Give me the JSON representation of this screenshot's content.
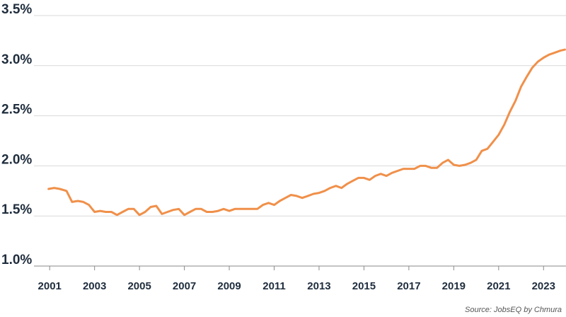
{
  "chart_data": {
    "type": "line",
    "title": "",
    "xlabel": "",
    "ylabel": "",
    "xlim": [
      2000.3,
      2024.0
    ],
    "ylim": [
      1.0,
      3.5
    ],
    "grid": "horizontal",
    "line_color": "#f0904a",
    "y_ticks": [
      {
        "value": 3.5,
        "label": "3.5%"
      },
      {
        "value": 3.0,
        "label": "3.0%"
      },
      {
        "value": 2.5,
        "label": "2.5%"
      },
      {
        "value": 2.0,
        "label": "2.0%"
      },
      {
        "value": 1.5,
        "label": "1.5%"
      },
      {
        "value": 1.0,
        "label": "1.0%"
      }
    ],
    "x_ticks": [
      {
        "value": 2001,
        "label": "2001"
      },
      {
        "value": 2003,
        "label": "2003"
      },
      {
        "value": 2005,
        "label": "2005"
      },
      {
        "value": 2007,
        "label": "2007"
      },
      {
        "value": 2009,
        "label": "2009"
      },
      {
        "value": 2011,
        "label": "2011"
      },
      {
        "value": 2013,
        "label": "2013"
      },
      {
        "value": 2015,
        "label": "2015"
      },
      {
        "value": 2017,
        "label": "2017"
      },
      {
        "value": 2019,
        "label": "2019"
      },
      {
        "value": 2021,
        "label": "2021"
      },
      {
        "value": 2023,
        "label": "2023"
      }
    ],
    "series": [
      {
        "x": [
          2000.95,
          2001.2,
          2001.45,
          2001.75,
          2002.0,
          2002.25,
          2002.5,
          2002.75,
          2003.0,
          2003.25,
          2003.5,
          2003.75,
          2004.0,
          2004.25,
          2004.5,
          2004.75,
          2005.0,
          2005.25,
          2005.5,
          2005.75,
          2006.0,
          2006.25,
          2006.5,
          2006.75,
          2007.0,
          2007.25,
          2007.5,
          2007.75,
          2008.0,
          2008.25,
          2008.5,
          2008.75,
          2009.0,
          2009.25,
          2009.5,
          2009.75,
          2010.0,
          2010.25,
          2010.5,
          2010.75,
          2011.0,
          2011.25,
          2011.5,
          2011.75,
          2012.0,
          2012.25,
          2012.5,
          2012.75,
          2013.0,
          2013.25,
          2013.5,
          2013.75,
          2014.0,
          2014.25,
          2014.5,
          2014.75,
          2015.0,
          2015.25,
          2015.5,
          2015.75,
          2016.0,
          2016.25,
          2016.5,
          2016.75,
          2017.0,
          2017.25,
          2017.5,
          2017.75,
          2018.0,
          2018.25,
          2018.5,
          2018.75,
          2019.0,
          2019.25,
          2019.5,
          2019.75,
          2020.0,
          2020.25,
          2020.5,
          2020.75,
          2021.0,
          2021.25,
          2021.5,
          2021.75,
          2022.0,
          2022.25,
          2022.5,
          2022.75,
          2023.0,
          2023.25,
          2023.5,
          2023.75,
          2024.0
        ],
        "y": [
          1.77,
          1.78,
          1.77,
          1.75,
          1.64,
          1.65,
          1.64,
          1.61,
          1.54,
          1.55,
          1.54,
          1.54,
          1.51,
          1.54,
          1.57,
          1.57,
          1.51,
          1.54,
          1.59,
          1.6,
          1.52,
          1.54,
          1.56,
          1.57,
          1.51,
          1.54,
          1.57,
          1.57,
          1.54,
          1.54,
          1.55,
          1.57,
          1.55,
          1.57,
          1.57,
          1.57,
          1.57,
          1.57,
          1.61,
          1.63,
          1.61,
          1.65,
          1.68,
          1.71,
          1.7,
          1.68,
          1.7,
          1.72,
          1.73,
          1.75,
          1.78,
          1.8,
          1.78,
          1.82,
          1.85,
          1.88,
          1.88,
          1.86,
          1.9,
          1.92,
          1.9,
          1.93,
          1.95,
          1.97,
          1.97,
          1.97,
          2.0,
          2.0,
          1.98,
          1.98,
          2.03,
          2.06,
          2.01,
          2.0,
          2.01,
          2.03,
          2.06,
          2.15,
          2.17,
          2.24,
          2.31,
          2.41,
          2.54,
          2.65,
          2.79,
          2.89,
          2.98,
          3.04,
          3.08,
          3.11,
          3.13,
          3.15,
          3.16
        ]
      }
    ],
    "source": "Source: JobsEQ by Chmura"
  }
}
